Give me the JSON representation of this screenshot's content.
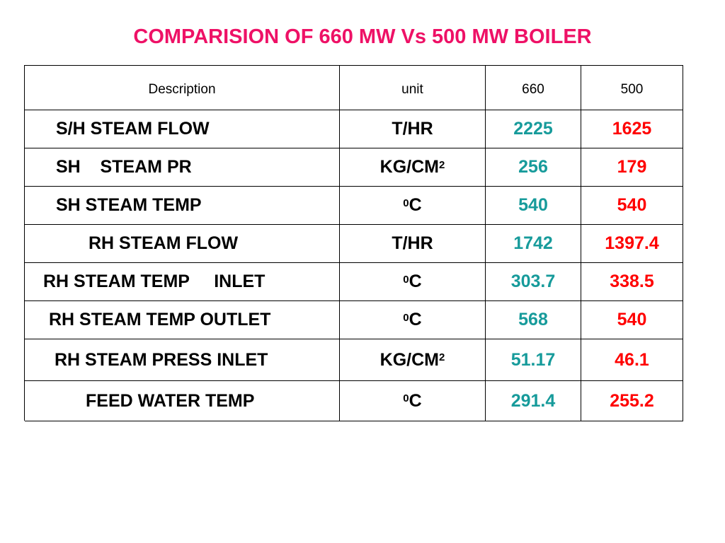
{
  "title": {
    "text": "COMPARISION OF 660 MW Vs 500 MW BOILER",
    "color": "#ee1166"
  },
  "table": {
    "headers": {
      "description": "Description",
      "unit": "unit",
      "col_660": "660",
      "col_500": "500"
    },
    "rows": [
      {
        "description": "S/H STEAM FLOW",
        "unit_main": "T/HR",
        "unit_sup": "",
        "unit_pre": "",
        "v660": "2225",
        "v500": "1625"
      },
      {
        "description": "SH    STEAM PR",
        "unit_main": "KG/CM",
        "unit_sup": "2",
        "unit_pre": "",
        "v660": "256",
        "v500": "179"
      },
      {
        "description": "SH STEAM TEMP",
        "unit_main": "C",
        "unit_sup": "",
        "unit_pre": "0",
        "v660": "540",
        "v500": "540"
      },
      {
        "description": "RH STEAM FLOW",
        "unit_main": "T/HR",
        "unit_sup": "",
        "unit_pre": "",
        "v660": "1742",
        "v500": "1397.4"
      },
      {
        "description": "RH STEAM TEMP     INLET",
        "unit_main": "C",
        "unit_sup": "",
        "unit_pre": "0",
        "v660": "303.7",
        "v500": "338.5"
      },
      {
        "description": "RH STEAM TEMP OUTLET",
        "unit_main": "C",
        "unit_sup": "",
        "unit_pre": "0",
        "v660": "568",
        "v500": "540"
      },
      {
        "description": "RH STEAM PRESS INLET",
        "unit_main": "KG/CM",
        "unit_sup": "2",
        "unit_pre": "",
        "v660": "51.17",
        "v500": "46.1"
      },
      {
        "description": "FEED WATER TEMP",
        "unit_main": "C",
        "unit_sup": "",
        "unit_pre": "0",
        "v660": "291.4",
        "v500": "255.2"
      }
    ],
    "colors": {
      "col_660_text": "#179b9b",
      "col_500_text": "#ff0000"
    }
  }
}
